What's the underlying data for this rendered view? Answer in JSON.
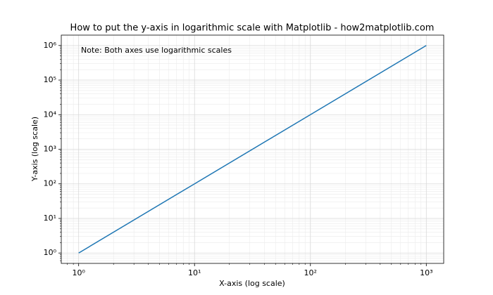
{
  "chart_data": {
    "type": "line",
    "title": "How to put the y-axis in logarithmic scale with Matplotlib - how2matplotlib.com",
    "xlabel": "X-axis (log scale)",
    "ylabel": "Y-axis (log scale)",
    "annotation": "Note: Both axes use logarithmic scales",
    "x": [
      1,
      10,
      100,
      1000
    ],
    "values": [
      1,
      100,
      10000,
      1000000
    ],
    "color": "#1f77b4",
    "xscale": "log",
    "yscale": "log",
    "grid": true,
    "xlim": [
      0.708,
      1413
    ],
    "ylim": [
      0.501,
      1995262
    ],
    "xticks": [
      {
        "value": 1,
        "label": "10⁰"
      },
      {
        "value": 10,
        "label": "10¹"
      },
      {
        "value": 100,
        "label": "10²"
      },
      {
        "value": 1000,
        "label": "10³"
      }
    ],
    "yticks": [
      {
        "value": 1,
        "label": "10⁰"
      },
      {
        "value": 10,
        "label": "10¹"
      },
      {
        "value": 100,
        "label": "10²"
      },
      {
        "value": 1000,
        "label": "10³"
      },
      {
        "value": 10000,
        "label": "10⁴"
      },
      {
        "value": 100000,
        "label": "10⁵"
      },
      {
        "value": 1000000,
        "label": "10⁶"
      }
    ],
    "xminorticks": [
      0.8,
      0.9,
      2,
      3,
      4,
      5,
      6,
      7,
      8,
      9,
      20,
      30,
      40,
      50,
      60,
      70,
      80,
      90,
      200,
      300,
      400,
      500,
      600,
      700,
      800,
      900
    ],
    "yminorticks": [
      0.6,
      0.7,
      0.8,
      0.9,
      2,
      3,
      4,
      5,
      6,
      7,
      8,
      9,
      20,
      30,
      40,
      50,
      60,
      70,
      80,
      90,
      200,
      300,
      400,
      500,
      600,
      700,
      800,
      900,
      2000,
      3000,
      4000,
      5000,
      6000,
      7000,
      8000,
      9000,
      20000,
      30000,
      40000,
      50000,
      60000,
      70000,
      80000,
      90000,
      200000,
      300000,
      400000,
      500000,
      600000,
      700000,
      800000,
      900000
    ]
  }
}
